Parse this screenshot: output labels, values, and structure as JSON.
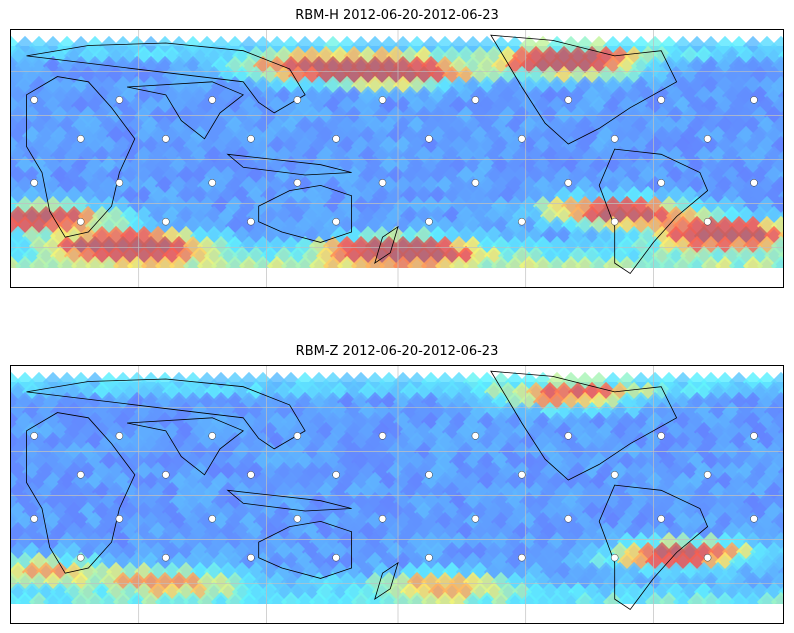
{
  "panels": [
    {
      "title": "RBM-H 2012-06-20-2012-06-23",
      "field": "RBM-H",
      "date_range": "2012-06-20-2012-06-23",
      "hotspots": [
        {
          "lon": 0.5,
          "lat": 0.12,
          "level": 0.9
        },
        {
          "lon": 0.72,
          "lat": 0.08,
          "level": 0.95
        },
        {
          "lon": 0.38,
          "lat": 0.1,
          "level": 0.7
        },
        {
          "lon": 0.92,
          "lat": 0.85,
          "level": 1.0
        },
        {
          "lon": 0.15,
          "lat": 0.9,
          "level": 1.0
        },
        {
          "lon": 0.5,
          "lat": 0.92,
          "level": 0.85
        },
        {
          "lon": 0.78,
          "lat": 0.75,
          "level": 0.9
        },
        {
          "lon": 0.03,
          "lat": 0.78,
          "level": 0.85
        }
      ]
    },
    {
      "title": "RBM-Z 2012-06-20-2012-06-23",
      "field": "RBM-Z",
      "date_range": "2012-06-20-2012-06-23",
      "hotspots": [
        {
          "lon": 0.72,
          "lat": 0.07,
          "level": 0.6
        },
        {
          "lon": 0.86,
          "lat": 0.78,
          "level": 0.85
        },
        {
          "lon": 0.2,
          "lat": 0.9,
          "level": 0.5
        },
        {
          "lon": 0.55,
          "lat": 0.92,
          "level": 0.45
        },
        {
          "lon": 0.03,
          "lat": 0.85,
          "level": 0.5
        }
      ]
    }
  ],
  "colormap": [
    "#6b5cff",
    "#5fa8ff",
    "#5ff5ff",
    "#fff56b",
    "#ff5f4f",
    "#c86060"
  ],
  "grid": true,
  "coastline_color": "#000000",
  "station_marker": "white-dots"
}
